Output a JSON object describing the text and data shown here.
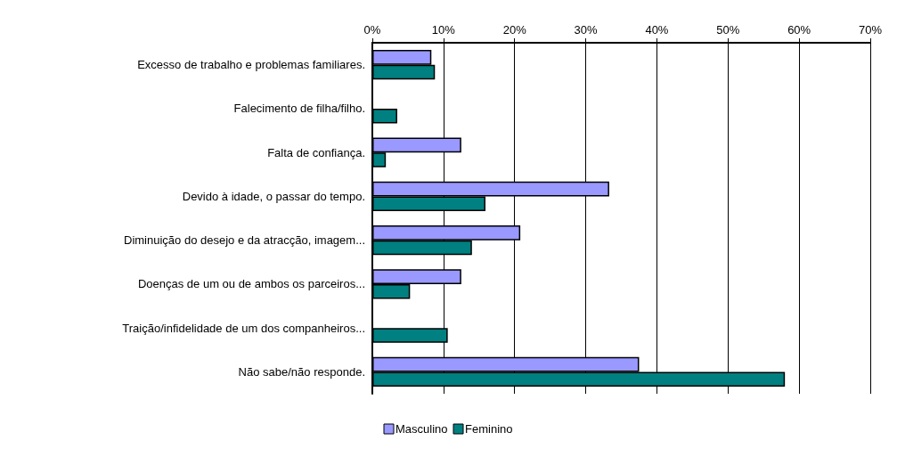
{
  "chart_data": {
    "type": "bar",
    "orientation": "horizontal",
    "categories": [
      "Excesso de trabalho e problemas familiares.",
      "Falecimento de filha/filho.",
      "Falta de confiança.",
      "Devido à idade, o passar do tempo.",
      "Diminuição do desejo e da atracção, imagem...",
      "Doenças de um ou de ambos os parceiros...",
      "Traição/infidelidade de um dos companheiros...",
      "Não sabe/não responde."
    ],
    "series": [
      {
        "name": "Masculino",
        "color": "#9999ff",
        "values": [
          8.3,
          0,
          12.5,
          33.3,
          20.8,
          12.5,
          0,
          37.5
        ]
      },
      {
        "name": "Feminino",
        "color": "#008080",
        "values": [
          8.8,
          3.5,
          1.9,
          15.9,
          14.0,
          5.3,
          10.6,
          58.0
        ]
      }
    ],
    "xlim": [
      0,
      70
    ],
    "xticks": [
      {
        "value": 0,
        "label": "0%"
      },
      {
        "value": 10,
        "label": "10%"
      },
      {
        "value": 20,
        "label": "20%"
      },
      {
        "value": 30,
        "label": "30%"
      },
      {
        "value": 40,
        "label": "40%"
      },
      {
        "value": 50,
        "label": "50%"
      },
      {
        "value": 60,
        "label": "60%"
      },
      {
        "value": 70,
        "label": "70%"
      }
    ],
    "grid": "x",
    "legend": "bottom"
  }
}
